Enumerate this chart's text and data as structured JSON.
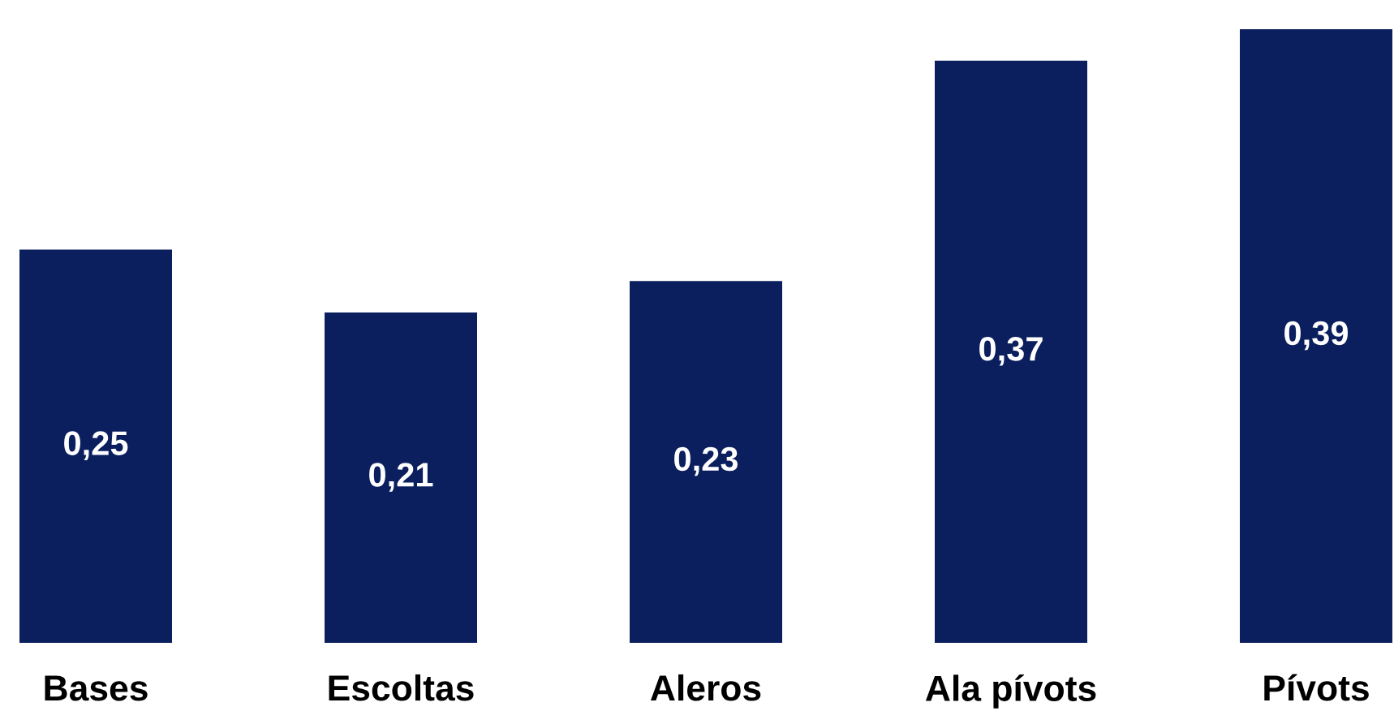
{
  "chart_data": {
    "type": "bar",
    "categories": [
      "Bases",
      "Escoltas",
      "Aleros",
      "Ala pívots",
      "Pívots"
    ],
    "values": [
      0.25,
      0.21,
      0.23,
      0.37,
      0.39
    ],
    "value_labels": [
      "0,25",
      "0,21",
      "0,23",
      "0,37",
      "0,39"
    ],
    "color": "#0b1f5e",
    "grid": false,
    "legend": false
  }
}
